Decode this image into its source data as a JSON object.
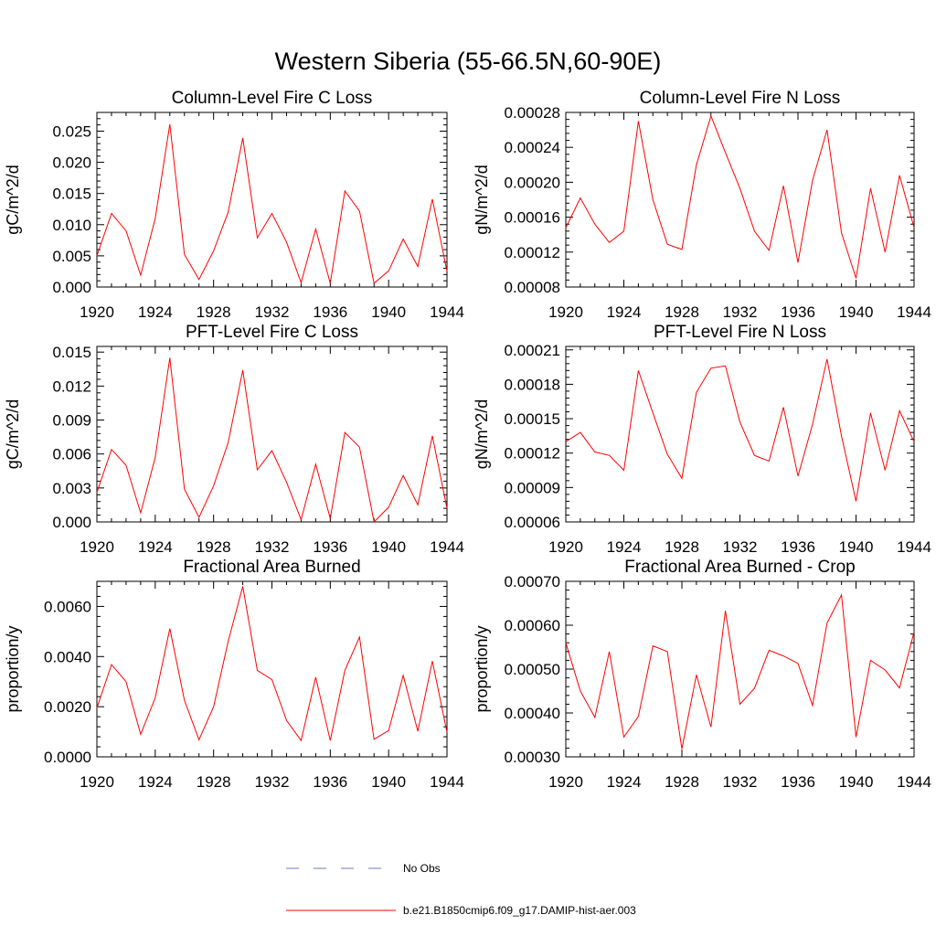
{
  "title": "Western Siberia (55-66.5N,60-90E)",
  "legend": [
    {
      "label": "No Obs",
      "color": "#6b7bc4",
      "style": "dashed"
    },
    {
      "label": "b.e21.B1850cmip6.f09_g17.DAMIP-hist-aer.003",
      "color": "#ff0000",
      "style": "solid"
    }
  ],
  "chart_data": [
    {
      "type": "line",
      "title": "Column-Level Fire C Loss",
      "ylabel": "gC/m^2/d",
      "xlim": [
        1920,
        1944
      ],
      "ylim": [
        0,
        0.028
      ],
      "xticks": [
        "1920",
        "1924",
        "1928",
        "1932",
        "1936",
        "1940",
        "1944"
      ],
      "yticks": [
        "0.000",
        "0.005",
        "0.010",
        "0.015",
        "0.020",
        "0.025"
      ],
      "x": [
        1920,
        1921,
        1922,
        1923,
        1924,
        1925,
        1926,
        1927,
        1928,
        1929,
        1930,
        1931,
        1932,
        1933,
        1934,
        1935,
        1936,
        1937,
        1938,
        1939,
        1940,
        1941,
        1942,
        1943,
        1944
      ],
      "series": [
        {
          "color": "#ff0000",
          "values": [
            0.005,
            0.0118,
            0.009,
            0.0019,
            0.011,
            0.0261,
            0.0052,
            0.0012,
            0.0058,
            0.012,
            0.0239,
            0.0079,
            0.0118,
            0.0072,
            0.0007,
            0.0093,
            0.0006,
            0.0154,
            0.0122,
            0.0006,
            0.0026,
            0.0077,
            0.0033,
            0.0141,
            0.0025
          ]
        }
      ]
    },
    {
      "type": "line",
      "title": "Column-Level Fire N Loss",
      "ylabel": "gN/m^2/d",
      "xlim": [
        1920,
        1944
      ],
      "ylim": [
        8e-05,
        0.00028
      ],
      "xticks": [
        "1920",
        "1924",
        "1928",
        "1932",
        "1936",
        "1940",
        "1944"
      ],
      "yticks": [
        "0.00008",
        "0.00012",
        "0.00016",
        "0.00020",
        "0.00024",
        "0.00028"
      ],
      "x": [
        1920,
        1921,
        1922,
        1923,
        1924,
        1925,
        1926,
        1927,
        1928,
        1929,
        1930,
        1931,
        1932,
        1933,
        1934,
        1935,
        1936,
        1937,
        1938,
        1939,
        1940,
        1941,
        1942,
        1943,
        1944
      ],
      "series": [
        {
          "color": "#ff0000",
          "values": [
            0.000148,
            0.000182,
            0.000152,
            0.000131,
            0.000144,
            0.00027,
            0.00018,
            0.000129,
            0.000123,
            0.00022,
            0.000276,
            0.000234,
            0.000193,
            0.000144,
            0.000122,
            0.000196,
            0.000108,
            0.000202,
            0.00026,
            0.000142,
            9e-05,
            0.000193,
            0.00012,
            0.000208,
            0.000148
          ]
        }
      ]
    },
    {
      "type": "line",
      "title": "PFT-Level Fire C Loss",
      "ylabel": "gC/m^2/d",
      "xlim": [
        1920,
        1944
      ],
      "ylim": [
        0,
        0.0155
      ],
      "xticks": [
        "1920",
        "1924",
        "1928",
        "1932",
        "1936",
        "1940",
        "1944"
      ],
      "yticks": [
        "0.000",
        "0.003",
        "0.006",
        "0.009",
        "0.012",
        "0.015"
      ],
      "x": [
        1920,
        1921,
        1922,
        1923,
        1924,
        1925,
        1926,
        1927,
        1928,
        1929,
        1930,
        1931,
        1932,
        1933,
        1934,
        1935,
        1936,
        1937,
        1938,
        1939,
        1940,
        1941,
        1942,
        1943,
        1944
      ],
      "series": [
        {
          "color": "#ff0000",
          "values": [
            0.0026,
            0.0064,
            0.005,
            0.0008,
            0.0057,
            0.0145,
            0.0029,
            0.0004,
            0.0032,
            0.007,
            0.0134,
            0.0046,
            0.0063,
            0.0035,
            0.0002,
            0.0051,
            0.0003,
            0.0079,
            0.0066,
            0.0,
            0.0013,
            0.0041,
            0.0015,
            0.0076,
            0.0012
          ]
        }
      ]
    },
    {
      "type": "line",
      "title": "PFT-Level Fire N Loss",
      "ylabel": "gN/m^2/d",
      "xlim": [
        1920,
        1944
      ],
      "ylim": [
        6e-05,
        0.000213
      ],
      "xticks": [
        "1920",
        "1924",
        "1928",
        "1932",
        "1936",
        "1940",
        "1944"
      ],
      "yticks": [
        "0.00006",
        "0.00009",
        "0.00012",
        "0.00015",
        "0.00018",
        "0.00021"
      ],
      "x": [
        1920,
        1921,
        1922,
        1923,
        1924,
        1925,
        1926,
        1927,
        1928,
        1929,
        1930,
        1931,
        1932,
        1933,
        1934,
        1935,
        1936,
        1937,
        1938,
        1939,
        1940,
        1941,
        1942,
        1943,
        1944
      ],
      "series": [
        {
          "color": "#ff0000",
          "values": [
            0.00013,
            0.000138,
            0.000121,
            0.000118,
            0.000105,
            0.000192,
            0.000155,
            0.000119,
            9.8e-05,
            0.000173,
            0.000194,
            0.000196,
            0.000147,
            0.000118,
            0.000113,
            0.00016,
            0.0001,
            0.000145,
            0.000202,
            0.000135,
            7.8e-05,
            0.000155,
            0.000105,
            0.000157,
            0.00013
          ]
        }
      ]
    },
    {
      "type": "line",
      "title": "Fractional Area Burned",
      "ylabel": "proportion/y",
      "xlim": [
        1920,
        1944
      ],
      "ylim": [
        0,
        0.007
      ],
      "xticks": [
        "1920",
        "1924",
        "1928",
        "1932",
        "1936",
        "1940",
        "1944"
      ],
      "yticks": [
        "0.0000",
        "0.0020",
        "0.0040",
        "0.0060"
      ],
      "x": [
        1920,
        1921,
        1922,
        1923,
        1924,
        1925,
        1926,
        1927,
        1928,
        1929,
        1930,
        1931,
        1932,
        1933,
        1934,
        1935,
        1936,
        1937,
        1938,
        1939,
        1940,
        1941,
        1942,
        1943,
        1944
      ],
      "series": [
        {
          "color": "#ff0000",
          "values": [
            0.00195,
            0.00368,
            0.003,
            0.0009,
            0.00235,
            0.00512,
            0.00225,
            0.00068,
            0.002,
            0.0046,
            0.0068,
            0.00345,
            0.00308,
            0.00145,
            0.00065,
            0.00318,
            0.00065,
            0.00345,
            0.00478,
            0.0007,
            0.00105,
            0.00325,
            0.00102,
            0.00382,
            0.00098
          ]
        }
      ]
    },
    {
      "type": "line",
      "title": "Fractional Area Burned - Crop",
      "ylabel": "proportion/y",
      "xlim": [
        1920,
        1944
      ],
      "ylim": [
        0.0003,
        0.0007
      ],
      "xticks": [
        "1920",
        "1924",
        "1928",
        "1932",
        "1936",
        "1940",
        "1944"
      ],
      "yticks": [
        "0.00030",
        "0.00040",
        "0.00050",
        "0.00060",
        "0.00070"
      ],
      "x": [
        1920,
        1921,
        1922,
        1923,
        1924,
        1925,
        1926,
        1927,
        1928,
        1929,
        1930,
        1931,
        1932,
        1933,
        1934,
        1935,
        1936,
        1937,
        1938,
        1939,
        1940,
        1941,
        1942,
        1943,
        1944
      ],
      "series": [
        {
          "color": "#ff0000",
          "values": [
            0.00056,
            0.00045,
            0.00039,
            0.00054,
            0.000345,
            0.000392,
            0.000553,
            0.00054,
            0.000318,
            0.000487,
            0.000368,
            0.000633,
            0.00042,
            0.000456,
            0.000543,
            0.00053,
            0.000513,
            0.000417,
            0.000605,
            0.000669,
            0.000345,
            0.00052,
            0.000498,
            0.000457,
            0.000585
          ]
        }
      ]
    }
  ]
}
